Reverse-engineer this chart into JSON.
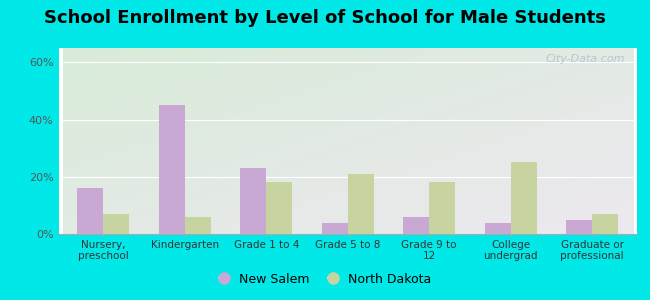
{
  "title": "School Enrollment by Level of School for Male Students",
  "categories": [
    "Nursery,\npreschool",
    "Kindergarten",
    "Grade 1 to 4",
    "Grade 5 to 8",
    "Grade 9 to\n12",
    "College\nundergrad",
    "Graduate or\nprofessional"
  ],
  "new_salem": [
    16,
    45,
    23,
    4,
    6,
    4,
    5
  ],
  "north_dakota": [
    7,
    6,
    18,
    21,
    18,
    25,
    7
  ],
  "bar_color_salem": "#c9a8d4",
  "bar_color_nd": "#c8d4a0",
  "ylim": [
    0,
    65
  ],
  "yticks": [
    0,
    20,
    40,
    60
  ],
  "ytick_labels": [
    "0%",
    "20%",
    "40%",
    "60%"
  ],
  "legend_salem": "New Salem",
  "legend_nd": "North Dakota",
  "bg_outer": "#00e8e8",
  "bg_plot_topleft": "#d8ecd8",
  "bg_plot_botright": "#ede8f0",
  "title_fontsize": 13,
  "watermark": "City-Data.com",
  "bar_width": 0.32
}
